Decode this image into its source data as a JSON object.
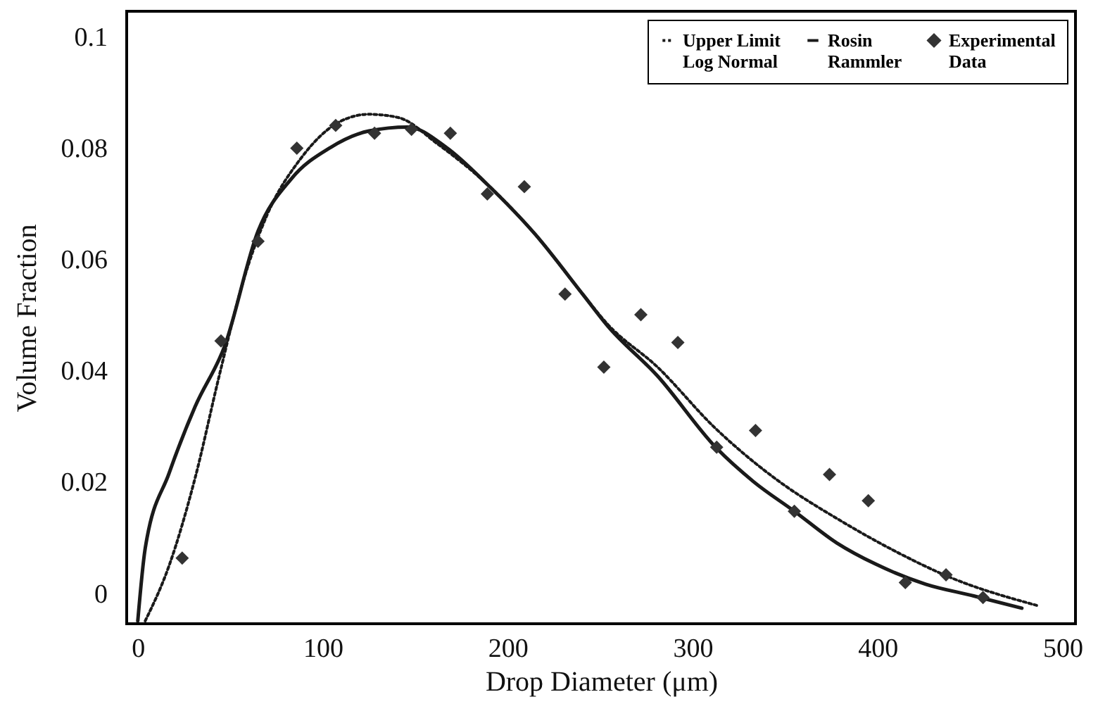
{
  "chart_data": {
    "type": "line",
    "xlabel": "Drop Diameter (μm)",
    "ylabel": "Volume Fraction",
    "xlim": [
      -6,
      507
    ],
    "ylim": [
      -0.0055,
      0.1045
    ],
    "xticks": [
      0,
      100,
      200,
      300,
      400,
      500
    ],
    "yticks": [
      0,
      0.02,
      0.04,
      0.06,
      0.08,
      0.1
    ],
    "grid": false,
    "legend": "top right",
    "series": [
      {
        "name": "Upper Limit\nLog Normal",
        "type": "line",
        "line_style": "dotted",
        "marker": "none",
        "color": "#1a1a1a",
        "x": [
          4,
          17,
          31,
          44,
          57,
          70,
          88,
          110,
          125,
          141,
          162,
          189,
          215,
          241,
          254,
          281,
          312,
          347,
          378,
          412,
          438,
          486
        ],
        "values": [
          -0.005,
          0.005,
          0.0207,
          0.039,
          0.056,
          0.068,
          0.078,
          0.0848,
          0.086,
          0.0854,
          0.0807,
          0.0734,
          0.0644,
          0.0535,
          0.0483,
          0.0406,
          0.0297,
          0.02,
          0.0134,
          0.0071,
          0.003,
          -0.0022
        ]
      },
      {
        "name": "Rosin\nRammler",
        "type": "line",
        "line_style": "solid",
        "marker": "none",
        "color": "#1a1a1a",
        "x": [
          0,
          4,
          17,
          31,
          47,
          65,
          83,
          104,
          125,
          146,
          167,
          189,
          215,
          241,
          254,
          281,
          313,
          333,
          355,
          378,
          399,
          426,
          452,
          478
        ],
        "values": [
          -0.005,
          0.008,
          0.0216,
          0.0335,
          0.0444,
          0.065,
          0.0744,
          0.08,
          0.083,
          0.0837,
          0.08,
          0.0734,
          0.0644,
          0.0535,
          0.048,
          0.039,
          0.026,
          0.02,
          0.0147,
          0.009,
          0.0052,
          0.0016,
          -0.0005,
          -0.0027
        ]
      },
      {
        "name": "Experimental\nData",
        "type": "scatter",
        "marker": "diamond",
        "color": "#333333",
        "x": [
          24,
          45,
          65,
          86,
          107,
          128,
          148,
          169,
          189,
          209,
          231,
          252,
          272,
          292,
          313,
          334,
          355,
          374,
          395,
          415,
          437,
          457
        ],
        "values": [
          0.0063,
          0.0453,
          0.0632,
          0.0799,
          0.084,
          0.0826,
          0.0833,
          0.0826,
          0.0717,
          0.073,
          0.0537,
          0.0406,
          0.05,
          0.045,
          0.0262,
          0.0292,
          0.0147,
          0.0213,
          0.0166,
          0.0019,
          0.0033,
          -0.0008
        ]
      }
    ]
  }
}
